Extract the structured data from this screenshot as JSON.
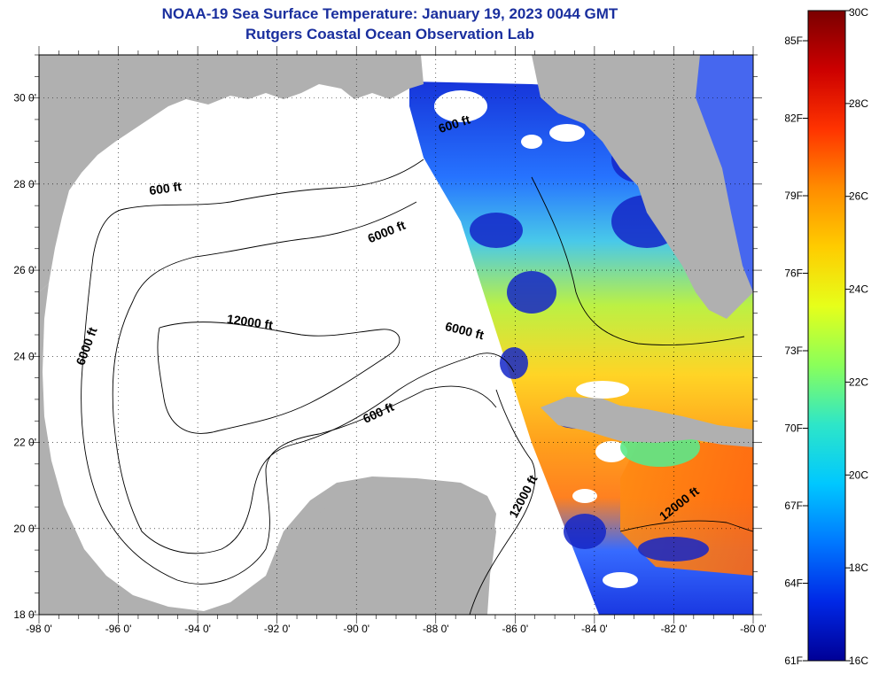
{
  "title": "NOAA-19 Sea Surface Temperature:  January 19, 2023 0044 GMT",
  "subtitle": "Rutgers Coastal Ocean Observation Lab",
  "map": {
    "lon_range": [
      -98,
      -80
    ],
    "lat_range": [
      18,
      31
    ],
    "x_tick_labels": [
      "-98 0'",
      "-96 0'",
      "-94 0'",
      "-92 0'",
      "-90 0'",
      "-88 0'",
      "-86 0'",
      "-84 0'",
      "-82 0'",
      "-80 0'"
    ],
    "y_tick_labels": [
      "18 0'",
      "20 0'",
      "22 0'",
      "24 0'",
      "26 0'",
      "28 0'",
      "30 0'"
    ],
    "land_color": "#b0b0b0",
    "no_data_color": "#ffffff",
    "contour_labels": [
      {
        "text": "600 ft",
        "lon": -94.8,
        "lat": 27.8,
        "angle": -8
      },
      {
        "text": "600 ft",
        "lon": -87.5,
        "lat": 29.3,
        "angle": -18
      },
      {
        "text": "6000 ft",
        "lon": -89.2,
        "lat": 26.8,
        "angle": -22
      },
      {
        "text": "12000 ft",
        "lon": -92.7,
        "lat": 24.7,
        "angle": 8
      },
      {
        "text": "6000 ft",
        "lon": -87.3,
        "lat": 24.5,
        "angle": 14
      },
      {
        "text": "6000 ft",
        "lon": -96.7,
        "lat": 24.2,
        "angle": -70
      },
      {
        "text": "600 ft",
        "lon": -89.4,
        "lat": 22.6,
        "angle": -25
      },
      {
        "text": "12000 ft",
        "lon": -85.7,
        "lat": 20.7,
        "angle": -62
      },
      {
        "text": "12000 ft",
        "lon": -81.8,
        "lat": 20.5,
        "angle": -38
      }
    ]
  },
  "colorbar": {
    "celsius_labels": [
      "30C",
      "28C",
      "26C",
      "24C",
      "22C",
      "20C",
      "18C",
      "16C"
    ],
    "fahrenheit_labels": [
      "85F",
      "82F",
      "79F",
      "76F",
      "73F",
      "70F",
      "67F",
      "64F",
      "61F"
    ],
    "gradient_colors": [
      "#7a0000",
      "#cc0000",
      "#ff3300",
      "#ff8c00",
      "#ffcc00",
      "#e6ff1a",
      "#8aff5a",
      "#2ee6c8",
      "#00c8ff",
      "#0078ff",
      "#0028e6",
      "#000096"
    ]
  }
}
